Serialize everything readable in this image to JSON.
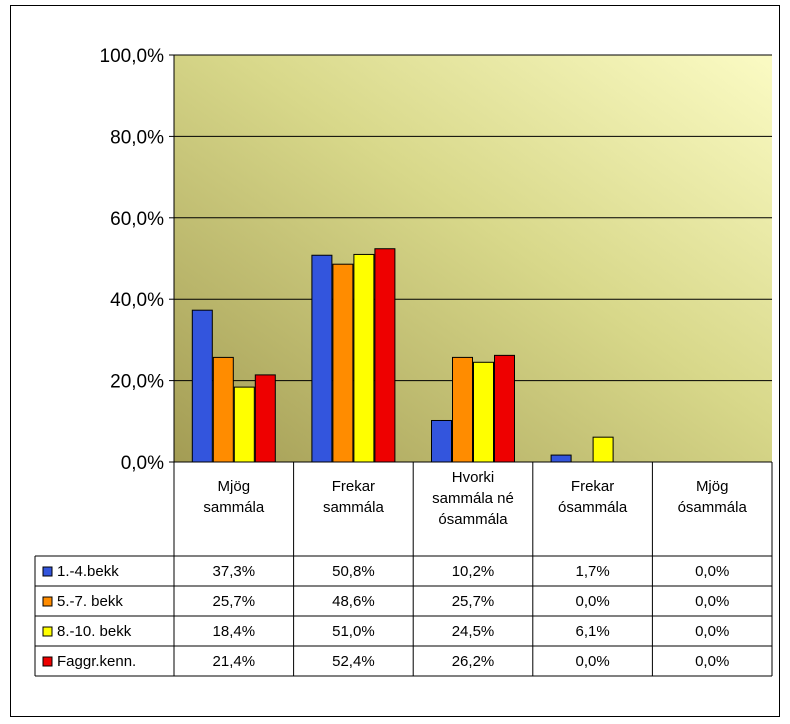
{
  "chart_data": {
    "type": "bar",
    "categories": [
      [
        "Mjög",
        "sammála"
      ],
      [
        "Frekar",
        "sammála"
      ],
      [
        "Hvorki",
        "sammála né",
        "ósammála"
      ],
      [
        "Frekar",
        "ósammála"
      ],
      [
        "Mjög",
        "ósammála"
      ]
    ],
    "series": [
      {
        "name": "1.-4.bekk",
        "color": "#3355dd",
        "values": [
          37.3,
          50.8,
          10.2,
          1.7,
          0.0
        ],
        "labels": [
          "37,3%",
          "50,8%",
          "10,2%",
          "1,7%",
          "0,0%"
        ]
      },
      {
        "name": "5.-7. bekk",
        "color": "#ff8c00",
        "values": [
          25.7,
          48.6,
          25.7,
          0.0,
          0.0
        ],
        "labels": [
          "25,7%",
          "48,6%",
          "25,7%",
          "0,0%",
          "0,0%"
        ]
      },
      {
        "name": "8.-10. bekk",
        "color": "#ffff00",
        "values": [
          18.4,
          51.0,
          24.5,
          6.1,
          0.0
        ],
        "labels": [
          "18,4%",
          "51,0%",
          "24,5%",
          "6,1%",
          "0,0%"
        ]
      },
      {
        "name": "Faggr.kenn.",
        "color": "#ee0000",
        "values": [
          21.4,
          52.4,
          26.2,
          0.0,
          0.0
        ],
        "labels": [
          "21,4%",
          "52,4%",
          "26,2%",
          "0,0%",
          "0,0%"
        ]
      }
    ],
    "yticks": [
      {
        "value": 0,
        "label": "0,0%"
      },
      {
        "value": 20,
        "label": "20,0%"
      },
      {
        "value": 40,
        "label": "40,0%"
      },
      {
        "value": 60,
        "label": "60,0%"
      },
      {
        "value": 80,
        "label": "80,0%"
      },
      {
        "value": 100,
        "label": "100,0%"
      }
    ],
    "ylim": [
      0,
      100
    ],
    "grid": true,
    "legend": "data-table"
  }
}
